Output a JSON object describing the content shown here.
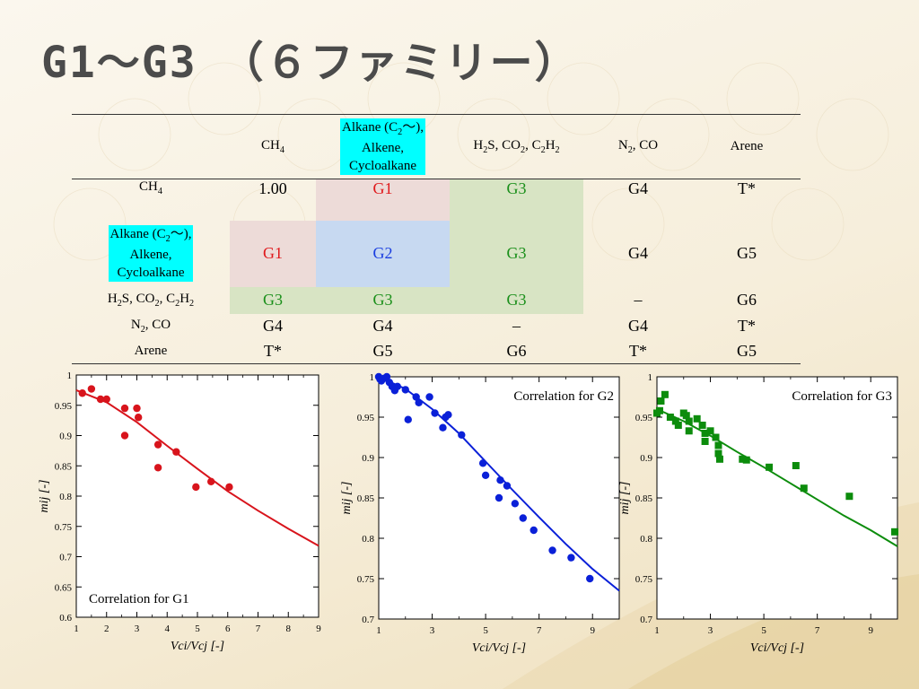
{
  "slide": {
    "title": "G1～G3　（６ファミリー）"
  },
  "table": {
    "col_headers": {
      "c0": "",
      "c1": "CH4",
      "c2": "Alkane (C2～), Alkene, Cycloalkane",
      "c3": "H2S, CO2, C2H2",
      "c4": "N2, CO",
      "c5": "Arene"
    },
    "row_headers": {
      "r1": "CH4",
      "r2": "Alkane (C2～), Alkene, Cycloalkane",
      "r3": "H2S, CO2, C2H2",
      "r4": "N2, CO",
      "r5": "Arene"
    },
    "rows": [
      [
        "1.00",
        "G1",
        "G3",
        "G4",
        "T*"
      ],
      [
        "G1",
        "G2",
        "G3",
        "G4",
        "G5"
      ],
      [
        "G3",
        "G3",
        "G3",
        "–",
        "G6"
      ],
      [
        "G4",
        "G4",
        "–",
        "G4",
        "T*"
      ],
      [
        "T*",
        "G5",
        "G6",
        "T*",
        "G5"
      ]
    ]
  },
  "chart_data": [
    {
      "type": "scatter",
      "title": "Correlation for G1",
      "xlabel": "Vci/Vcj [-]",
      "ylabel": "mij [-]",
      "xlim": [
        1,
        9
      ],
      "ylim": [
        0.6,
        1.0
      ],
      "xticks": [
        1,
        2,
        3,
        4,
        5,
        6,
        7,
        8,
        9
      ],
      "yticks": [
        0.6,
        0.65,
        0.7,
        0.75,
        0.8,
        0.85,
        0.9,
        0.95,
        1
      ],
      "ytick_labels": [
        "0.6",
        "0.65",
        "0.7",
        "0.75",
        "0.8",
        "0.85",
        "0.9",
        "0.95",
        "1"
      ],
      "marker": "circle",
      "color": "#d8141c",
      "points": [
        [
          1.2,
          0.97
        ],
        [
          1.5,
          0.977
        ],
        [
          1.8,
          0.96
        ],
        [
          2.0,
          0.96
        ],
        [
          2.6,
          0.945
        ],
        [
          2.6,
          0.9
        ],
        [
          3.0,
          0.945
        ],
        [
          3.05,
          0.93
        ],
        [
          3.7,
          0.885
        ],
        [
          3.7,
          0.847
        ],
        [
          4.3,
          0.873
        ],
        [
          4.95,
          0.815
        ],
        [
          5.45,
          0.824
        ],
        [
          6.05,
          0.815
        ]
      ],
      "fit": [
        [
          1.0,
          0.975
        ],
        [
          2.0,
          0.955
        ],
        [
          3.0,
          0.922
        ],
        [
          4.0,
          0.883
        ],
        [
          5.0,
          0.845
        ],
        [
          6.0,
          0.808
        ],
        [
          7.0,
          0.776
        ],
        [
          8.0,
          0.746
        ],
        [
          9.0,
          0.718
        ]
      ]
    },
    {
      "type": "scatter",
      "title": "Correlation for G2",
      "xlabel": "Vci/Vcj [-]",
      "ylabel": "mij [-]",
      "xlim": [
        1,
        10
      ],
      "ylim": [
        0.7,
        1.0
      ],
      "xticks": [
        1,
        3,
        5,
        7,
        9
      ],
      "yticks": [
        0.7,
        0.75,
        0.8,
        0.85,
        0.9,
        0.95,
        1
      ],
      "ytick_labels": [
        "0.7",
        "0.75",
        "0.8",
        "0.85",
        "0.9",
        "0.95",
        "1"
      ],
      "marker": "circle",
      "color": "#0a20d8",
      "points": [
        [
          1.0,
          1.0
        ],
        [
          1.05,
          0.997
        ],
        [
          1.1,
          0.995
        ],
        [
          1.2,
          0.998
        ],
        [
          1.3,
          1.0
        ],
        [
          1.4,
          0.993
        ],
        [
          1.5,
          0.988
        ],
        [
          1.6,
          0.983
        ],
        [
          1.7,
          0.988
        ],
        [
          2.0,
          0.984
        ],
        [
          2.1,
          0.947
        ],
        [
          2.4,
          0.975
        ],
        [
          2.5,
          0.968
        ],
        [
          2.9,
          0.975
        ],
        [
          3.1,
          0.955
        ],
        [
          3.4,
          0.937
        ],
        [
          3.5,
          0.95
        ],
        [
          3.6,
          0.953
        ],
        [
          4.1,
          0.928
        ],
        [
          4.9,
          0.893
        ],
        [
          5.0,
          0.878
        ],
        [
          5.5,
          0.85
        ],
        [
          5.55,
          0.872
        ],
        [
          5.8,
          0.865
        ],
        [
          6.1,
          0.843
        ],
        [
          6.4,
          0.825
        ],
        [
          6.8,
          0.81
        ],
        [
          7.5,
          0.785
        ],
        [
          8.2,
          0.776
        ],
        [
          8.9,
          0.75
        ]
      ],
      "fit": [
        [
          1.0,
          1.0
        ],
        [
          2.0,
          0.985
        ],
        [
          3.0,
          0.96
        ],
        [
          4.0,
          0.93
        ],
        [
          5.0,
          0.895
        ],
        [
          6.0,
          0.86
        ],
        [
          7.0,
          0.826
        ],
        [
          8.0,
          0.793
        ],
        [
          9.0,
          0.762
        ],
        [
          10.0,
          0.735
        ]
      ]
    },
    {
      "type": "scatter",
      "title": "Correlation for G3",
      "xlabel": "Vci/Vcj [-]",
      "ylabel": "mij [-]",
      "xlim": [
        1,
        10
      ],
      "ylim": [
        0.7,
        1.0
      ],
      "xticks": [
        1,
        3,
        5,
        7,
        9
      ],
      "yticks": [
        0.7,
        0.75,
        0.8,
        0.85,
        0.9,
        0.95,
        1
      ],
      "ytick_labels": [
        "0.7",
        "0.75",
        "0.8",
        "0.85",
        "0.9",
        "0.95",
        "1"
      ],
      "marker": "square",
      "color": "#0c8c0c",
      "points": [
        [
          1.0,
          0.955
        ],
        [
          1.1,
          0.958
        ],
        [
          1.15,
          0.97
        ],
        [
          1.3,
          0.978
        ],
        [
          1.5,
          0.95
        ],
        [
          1.7,
          0.945
        ],
        [
          1.8,
          0.94
        ],
        [
          2.0,
          0.955
        ],
        [
          2.1,
          0.952
        ],
        [
          2.2,
          0.945
        ],
        [
          2.2,
          0.933
        ],
        [
          2.5,
          0.948
        ],
        [
          2.7,
          0.94
        ],
        [
          2.8,
          0.93
        ],
        [
          2.8,
          0.92
        ],
        [
          3.0,
          0.933
        ],
        [
          3.2,
          0.925
        ],
        [
          3.3,
          0.915
        ],
        [
          3.3,
          0.905
        ],
        [
          3.35,
          0.898
        ],
        [
          4.2,
          0.898
        ],
        [
          4.35,
          0.897
        ],
        [
          5.2,
          0.888
        ],
        [
          6.2,
          0.89
        ],
        [
          6.5,
          0.862
        ],
        [
          8.2,
          0.852
        ],
        [
          9.9,
          0.808
        ]
      ],
      "fit": [
        [
          1.0,
          0.96
        ],
        [
          2.0,
          0.945
        ],
        [
          3.0,
          0.927
        ],
        [
          4.0,
          0.907
        ],
        [
          5.0,
          0.888
        ],
        [
          6.0,
          0.868
        ],
        [
          7.0,
          0.848
        ],
        [
          8.0,
          0.828
        ],
        [
          9.0,
          0.81
        ],
        [
          10.0,
          0.79
        ]
      ]
    }
  ]
}
